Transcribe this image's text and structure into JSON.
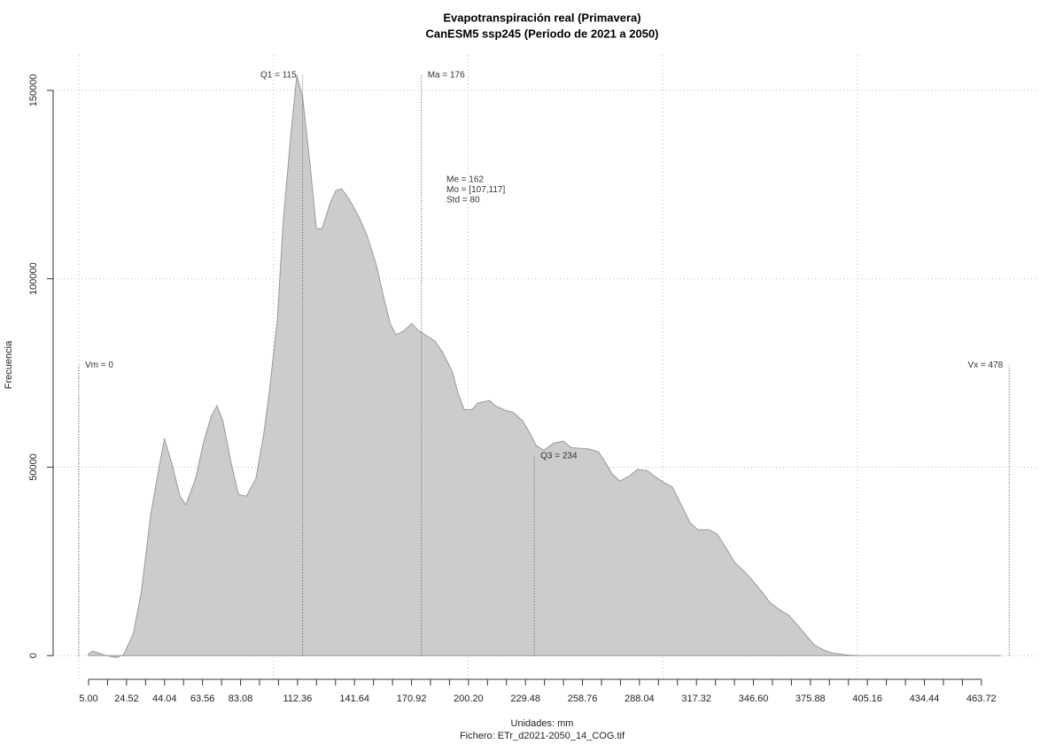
{
  "chart_data": {
    "type": "area",
    "title": "Evapotranspiración real (Primavera)",
    "subtitle": "CanESM5 ssp245 (Periodo de 2021 a 2050)",
    "xlabel": "Unidades: mm",
    "caption": "Fichero: ETr_d2021-2050_14_COG.tif",
    "ylabel": "Frecuencia",
    "color": "#cccccc",
    "x": [
      5,
      7,
      10,
      14,
      19,
      23,
      28,
      32,
      37,
      41,
      44,
      48,
      52,
      55,
      60,
      64,
      68,
      71,
      74,
      78,
      82,
      86,
      91,
      95,
      98,
      102,
      105,
      109,
      112,
      115,
      119,
      122,
      125,
      129,
      132,
      135,
      139,
      144,
      148,
      153,
      156,
      160,
      163,
      167,
      171,
      174,
      178,
      183,
      187,
      192,
      195,
      198,
      202,
      205,
      211,
      214,
      219,
      223,
      228,
      232,
      235,
      239,
      244,
      249,
      253,
      258,
      262,
      267,
      270,
      274,
      278,
      283,
      287,
      292,
      296,
      301,
      305,
      310,
      314,
      318,
      324,
      328,
      333,
      337,
      342,
      346,
      351,
      355,
      360,
      365,
      369,
      374,
      378,
      383,
      387,
      394,
      401,
      415,
      474
    ],
    "values": [
      500,
      1200,
      700,
      0,
      -500,
      200,
      5900,
      16500,
      37600,
      49400,
      57600,
      50500,
      42300,
      40000,
      47000,
      56400,
      63500,
      66300,
      62300,
      51700,
      42800,
      42300,
      47000,
      58800,
      70500,
      89300,
      115200,
      138700,
      154000,
      148100,
      129300,
      113300,
      113300,
      119900,
      123400,
      123900,
      121000,
      116300,
      111600,
      103400,
      96400,
      88100,
      85100,
      86200,
      88100,
      86500,
      85100,
      83400,
      80400,
      75200,
      69300,
      65300,
      65300,
      67000,
      67700,
      66300,
      65100,
      64600,
      62300,
      58800,
      55700,
      54500,
      56400,
      56900,
      55200,
      55000,
      54800,
      54100,
      51700,
      48200,
      46300,
      47700,
      49400,
      49100,
      47500,
      45800,
      44700,
      39500,
      35300,
      33400,
      33400,
      32200,
      28200,
      24700,
      22300,
      20000,
      16900,
      14100,
      12200,
      10600,
      8200,
      5200,
      2800,
      1400,
      700,
      200,
      0,
      0,
      0
    ],
    "xlim": [
      -13.2,
      492
    ],
    "ylim": [
      -6300,
      159400
    ],
    "xticks": [
      {
        "value": 5,
        "label": "5.00"
      },
      24.52,
      44.04,
      63.56,
      83.08,
      112.36,
      141.64,
      170.92,
      {
        "value": 200.2,
        "label": "200.20"
      },
      229.48,
      258.76,
      288.04,
      317.32,
      {
        "value": 346.6,
        "label": "346.60"
      },
      375.88,
      405.16,
      434.44,
      463.72
    ],
    "xminorticks": [
      14.76,
      34.28,
      53.8,
      73.32,
      92.84,
      102.6,
      122.12,
      131.88,
      151.4,
      161.16,
      180.68,
      190.44,
      209.96,
      219.72,
      239.24,
      249,
      268.52,
      278.28,
      297.8,
      307.56,
      327.08,
      336.84,
      356.36,
      366.12,
      385.64,
      395.4,
      414.92,
      424.68,
      444.2,
      453.96
    ],
    "yticks": [
      0,
      50000,
      100000,
      150000
    ],
    "xgrid": [
      0,
      100,
      200,
      300,
      400
    ],
    "grid": true,
    "vlines": [
      {
        "label": "Vm = 0",
        "value": 0,
        "height": 77000,
        "side": "right"
      },
      {
        "label": "Q1 = 115",
        "value": 115,
        "height": 154000,
        "side": "left"
      },
      {
        "label": "Ma = 176",
        "value": 176,
        "height": 154000,
        "side": "right"
      },
      {
        "label": "Q3 = 234",
        "value": 234,
        "height": 53000,
        "side": "right"
      },
      {
        "label": "Vx = 478",
        "value": 478,
        "height": 77000,
        "side": "left"
      }
    ],
    "stats": [
      "Me = 162",
      "Mo = [107,117]",
      "Std = 80"
    ]
  }
}
